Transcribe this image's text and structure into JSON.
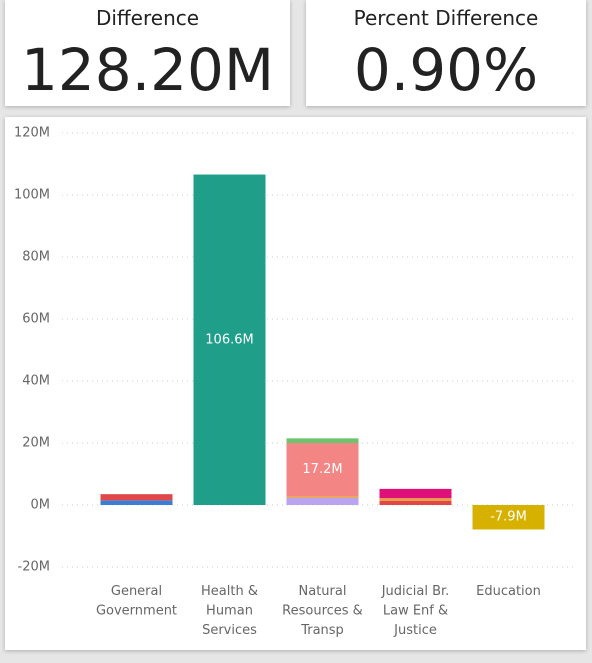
{
  "cards": [
    {
      "title": "Difference",
      "value": "128.20M"
    },
    {
      "title": "Percent Difference",
      "value": "0.90%"
    }
  ],
  "chart_data": {
    "type": "stacked_bar",
    "categories": [
      "General\nGovernment",
      "Health &\nHuman\nServices",
      "Natural\nResources &\nTransp",
      "Judicial Br.\nLaw Enf &\nJustice",
      "Education"
    ],
    "series": [
      {
        "color": "#3a7fd5",
        "values": [
          1.5,
          null,
          null,
          null,
          null
        ]
      },
      {
        "color": "#e04848",
        "values": [
          2.0,
          null,
          null,
          1.3,
          null
        ]
      },
      {
        "color": "#1f9e89",
        "values": [
          null,
          106.6,
          null,
          null,
          null
        ],
        "value_labels": [
          null,
          "106.6M",
          null,
          null,
          null
        ]
      },
      {
        "color": "#b9a4f0",
        "values": [
          null,
          null,
          2.3,
          null,
          null
        ]
      },
      {
        "color": "#e8a040",
        "values": [
          null,
          null,
          0.5,
          0.9,
          null
        ]
      },
      {
        "color": "#f38585",
        "values": [
          null,
          null,
          17.2,
          null,
          null
        ],
        "value_labels": [
          null,
          null,
          "17.2M",
          null,
          null
        ]
      },
      {
        "color": "#6cc46c",
        "values": [
          null,
          null,
          1.5,
          null,
          null
        ]
      },
      {
        "color": "#e0107a",
        "values": [
          null,
          null,
          null,
          3.0,
          null
        ]
      },
      {
        "color": "#d6b100",
        "values": [
          null,
          null,
          null,
          null,
          -7.9
        ],
        "value_labels": [
          null,
          null,
          null,
          null,
          "-7.9M"
        ]
      }
    ],
    "ylim": [
      -20,
      120
    ],
    "yticks": [
      {
        "value": -20,
        "label": "-20M"
      },
      {
        "value": 0,
        "label": "0M"
      },
      {
        "value": 20,
        "label": "20M"
      },
      {
        "value": 40,
        "label": "40M"
      },
      {
        "value": 60,
        "label": "60M"
      },
      {
        "value": 80,
        "label": "80M"
      },
      {
        "value": 100,
        "label": "100M"
      },
      {
        "value": 120,
        "label": "120M"
      }
    ],
    "grid": true
  }
}
